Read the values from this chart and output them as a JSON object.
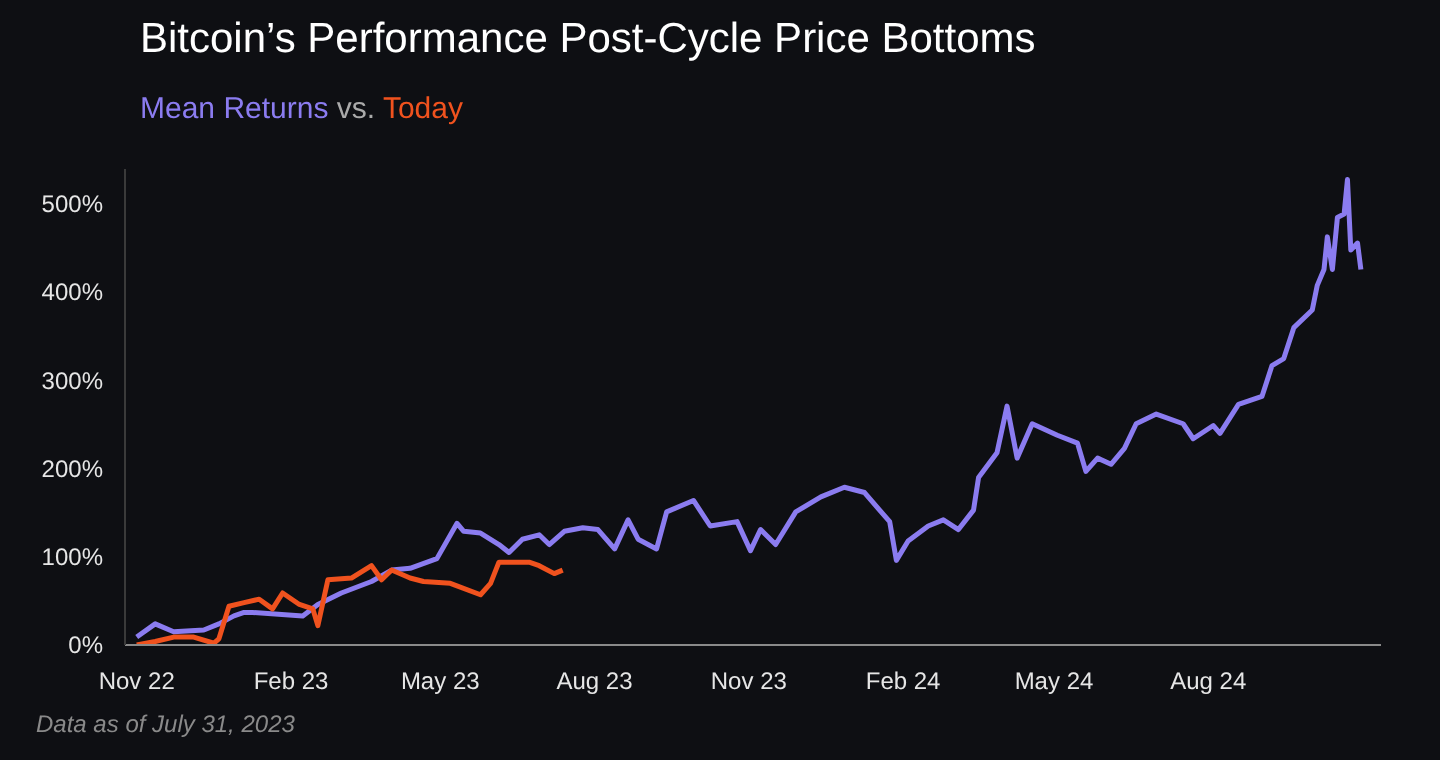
{
  "chart_data": {
    "type": "line",
    "title": "Bitcoin’s Performance Post-Cycle Price Bottoms",
    "subtitle": "vs.",
    "grid": false,
    "marker": "none",
    "line_style": "solid",
    "ylim": [
      0,
      540
    ],
    "yticks": [
      {
        "value": 0,
        "label": "0%"
      },
      {
        "value": 100,
        "label": "100%"
      },
      {
        "value": 200,
        "label": "200%"
      },
      {
        "value": 300,
        "label": "300%"
      },
      {
        "value": 400,
        "label": "400%"
      },
      {
        "value": 500,
        "label": "500%"
      }
    ],
    "xlim": [
      "2022-10-25",
      "2024-11-12"
    ],
    "xticks": [
      {
        "value": "2022-11-01",
        "label": "Nov 22"
      },
      {
        "value": "2023-02-01",
        "label": "Feb 23"
      },
      {
        "value": "2023-05-01",
        "label": "May 23"
      },
      {
        "value": "2023-08-01",
        "label": "Aug 23"
      },
      {
        "value": "2023-11-01",
        "label": "Nov 23"
      },
      {
        "value": "2024-02-01",
        "label": "Feb 24"
      },
      {
        "value": "2024-05-01",
        "label": "May 24"
      },
      {
        "value": "2024-08-01",
        "label": "Aug 24"
      }
    ],
    "annotations": [
      "Data as of July 31, 2023"
    ],
    "series": [
      {
        "name": "Mean Returns",
        "color": "#8b7cf0",
        "x": [
          "2022-11-01",
          "2022-11-12",
          "2022-11-23",
          "2022-12-11",
          "2022-12-20",
          "2022-12-29",
          "2023-01-04",
          "2023-01-09",
          "2023-02-08",
          "2023-02-17",
          "2023-03-03",
          "2023-03-21",
          "2023-04-02",
          "2023-04-13",
          "2023-04-29",
          "2023-05-11",
          "2023-05-15",
          "2023-05-25",
          "2023-06-05",
          "2023-06-11",
          "2023-06-19",
          "2023-06-29",
          "2023-07-05",
          "2023-07-14",
          "2023-07-25",
          "2023-08-03",
          "2023-08-13",
          "2023-08-21",
          "2023-08-27",
          "2023-09-07",
          "2023-09-13",
          "2023-09-29",
          "2023-10-09",
          "2023-10-25",
          "2023-11-02",
          "2023-11-08",
          "2023-11-17",
          "2023-11-29",
          "2023-12-14",
          "2023-12-28",
          "2024-01-09",
          "2024-01-18",
          "2024-01-24",
          "2024-01-28",
          "2024-02-04",
          "2024-02-16",
          "2024-02-25",
          "2024-03-05",
          "2024-03-14",
          "2024-03-17",
          "2024-03-28",
          "2024-04-03",
          "2024-04-09",
          "2024-04-18",
          "2024-05-03",
          "2024-05-15",
          "2024-05-20",
          "2024-05-27",
          "2024-06-04",
          "2024-06-12",
          "2024-06-19",
          "2024-07-01",
          "2024-07-17",
          "2024-07-23",
          "2024-08-04",
          "2024-08-08",
          "2024-08-19",
          "2024-09-02",
          "2024-09-08",
          "2024-09-15",
          "2024-09-21",
          "2024-10-02",
          "2024-10-05",
          "2024-10-09",
          "2024-10-11",
          "2024-10-14",
          "2024-10-17",
          "2024-10-21",
          "2024-10-23",
          "2024-10-25",
          "2024-10-29",
          "2024-10-31"
        ],
        "values": [
          9,
          24,
          15,
          17,
          24,
          33,
          37,
          37,
          33,
          46,
          59,
          72,
          85,
          87,
          98,
          138,
          129,
          127,
          114,
          105,
          120,
          125,
          114,
          129,
          133,
          131,
          109,
          142,
          120,
          109,
          151,
          164,
          135,
          140,
          107,
          131,
          114,
          151,
          168,
          179,
          173,
          153,
          140,
          96,
          118,
          135,
          142,
          131,
          153,
          190,
          218,
          271,
          212,
          251,
          238,
          229,
          197,
          212,
          205,
          223,
          251,
          262,
          251,
          234,
          249,
          240,
          273,
          282,
          317,
          325,
          360,
          380,
          408,
          426,
          463,
          426,
          485,
          489,
          528,
          448,
          456,
          426
        ]
      },
      {
        "name": "Today",
        "color": "#f0521e",
        "x": [
          "2022-11-01",
          "2022-11-12",
          "2022-11-23",
          "2022-12-05",
          "2022-12-17",
          "2022-12-20",
          "2022-12-26",
          "2023-01-04",
          "2023-01-13",
          "2023-01-21",
          "2023-01-27",
          "2023-02-06",
          "2023-02-14",
          "2023-02-17",
          "2023-02-23",
          "2023-03-09",
          "2023-03-21",
          "2023-03-27",
          "2023-04-02",
          "2023-04-13",
          "2023-04-21",
          "2023-05-07",
          "2023-05-25",
          "2023-05-31",
          "2023-06-05",
          "2023-06-23",
          "2023-06-29",
          "2023-07-08",
          "2023-07-13"
        ],
        "values": [
          0,
          4,
          9,
          9,
          2,
          7,
          44,
          48,
          52,
          41,
          59,
          46,
          41,
          22,
          74,
          76,
          90,
          74,
          85,
          76,
          72,
          70,
          57,
          70,
          94,
          94,
          90,
          81,
          85
        ]
      }
    ]
  }
}
